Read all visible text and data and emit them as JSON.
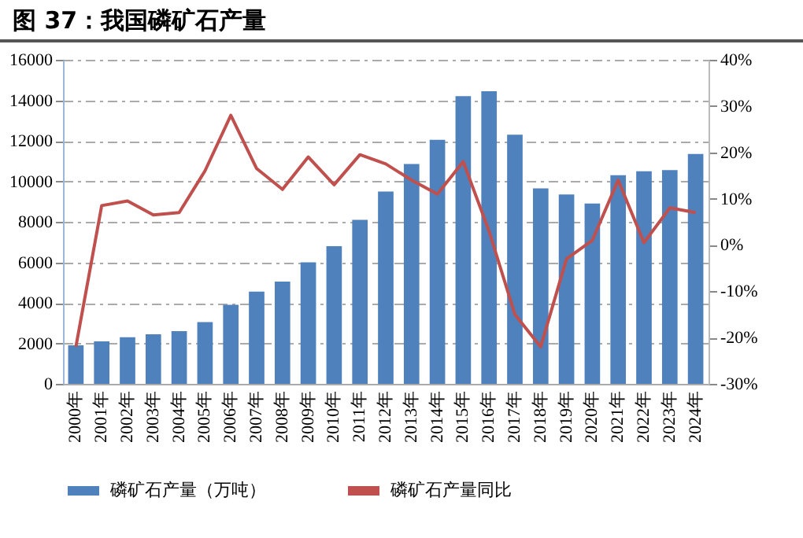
{
  "chart_data": {
    "type": "bar",
    "title": "图 37：我国磷矿石产量",
    "categories": [
      "2000年",
      "2001年",
      "2002年",
      "2003年",
      "2004年",
      "2005年",
      "2006年",
      "2007年",
      "2008年",
      "2009年",
      "2010年",
      "2011年",
      "2012年",
      "2013年",
      "2014年",
      "2015年",
      "2016年",
      "2017年",
      "2018年",
      "2019年",
      "2020年",
      "2021年",
      "2022年",
      "2023年",
      "2024年"
    ],
    "series": [
      {
        "name": "磷矿石产量（万吨）",
        "color": "#4f81bd",
        "values": [
          1900,
          2100,
          2300,
          2450,
          2600,
          3050,
          3900,
          4550,
          5050,
          6000,
          6800,
          8100,
          9500,
          10850,
          12050,
          14200,
          14450,
          12300,
          9650,
          9350,
          8900,
          10300,
          10500,
          10550,
          11350
        ]
      },
      {
        "name": "磷矿石产量同比",
        "type": "line",
        "axis": "y2",
        "color": "#c0504d",
        "values": [
          -22,
          8.5,
          9.5,
          6.5,
          7,
          16,
          28,
          16.5,
          12,
          19,
          13,
          19.5,
          17.5,
          14,
          11,
          18,
          3,
          -15,
          -22,
          -3,
          1,
          14,
          0.5,
          8,
          7
        ]
      }
    ],
    "ylim": [
      0,
      16000
    ],
    "yticks": [
      0,
      2000,
      4000,
      6000,
      8000,
      10000,
      12000,
      14000,
      16000
    ],
    "y2lim": [
      -30,
      40
    ],
    "y2ticks": [
      {
        "value": -30,
        "label": "-30%"
      },
      {
        "value": -20,
        "label": "-20%"
      },
      {
        "value": -10,
        "label": "-10%"
      },
      {
        "value": 0,
        "label": "0%"
      },
      {
        "value": 10,
        "label": "10%"
      },
      {
        "value": 20,
        "label": "20%"
      },
      {
        "value": 30,
        "label": "30%"
      },
      {
        "value": 40,
        "label": "40%"
      }
    ],
    "grid": "y",
    "legend": "bottom",
    "marker": "none",
    "line_style": "solid"
  }
}
